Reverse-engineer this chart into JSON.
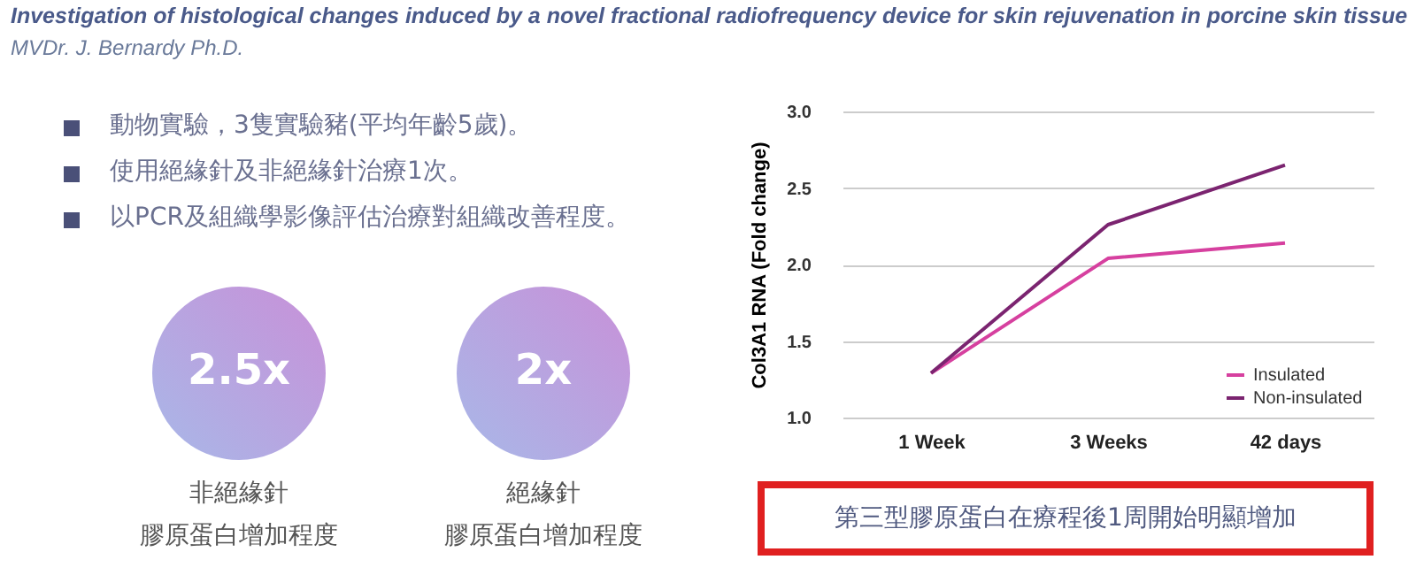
{
  "chart_data": {
    "type": "line",
    "title": "Investigation of histological changes induced by a novel fractional radiofrequency device for skin rejuvenation in porcine skin tissue",
    "subtitle": "MVDr. J. Bernardy Ph.D.",
    "ylabel": "Col3A1 RNA (Fold change)",
    "categories": [
      "1 Week",
      "3 Weeks",
      "42 days"
    ],
    "series": [
      {
        "name": "Insulated",
        "color": "#d6409f",
        "values": [
          1.29,
          2.04,
          2.14
        ]
      },
      {
        "name": "Non-insulated",
        "color": "#7b2470",
        "values": [
          1.29,
          2.26,
          2.65
        ]
      }
    ],
    "ylim": [
      1.0,
      3.0
    ],
    "yticks": [
      {
        "value": 1,
        "label": "1.0"
      },
      1.5,
      {
        "value": 2,
        "label": "2.0"
      },
      2.5,
      {
        "value": 3,
        "label": "3.0"
      }
    ],
    "grid": "y",
    "legend": "bottom right",
    "marker": "none",
    "line_style": "solid",
    "annotations": [
      "動物實驗，3隻實驗豬(平均年齡5歲)。",
      "使用絕緣針及非絕緣針治療1次。",
      "以PCR及組織學影像評估治療對組織改善程度。",
      "2.5x",
      "非絕緣針",
      "膠原蛋白增加程度",
      "2x",
      "絕緣針",
      "膠原蛋白增加程度",
      "第三型膠原蛋白在療程後1周開始明顯增加"
    ]
  }
}
